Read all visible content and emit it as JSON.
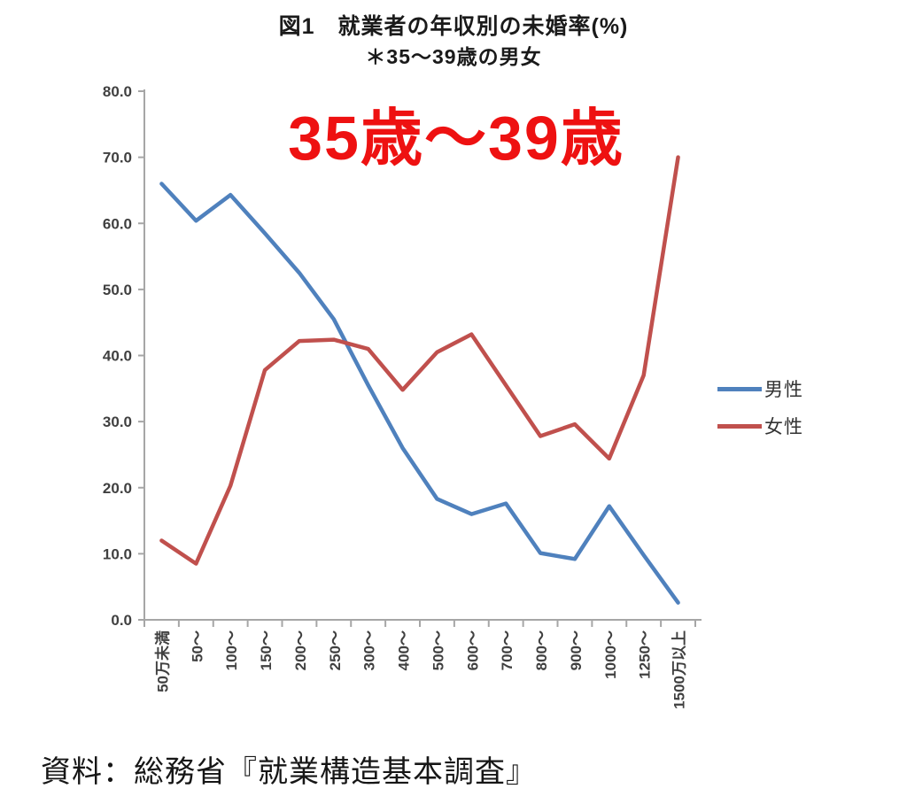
{
  "chart_data": {
    "type": "line",
    "title": "図1　就業者の年収別の未婚率(%)",
    "subtitle": "＊35〜39歳の男女",
    "annotation": "35歳〜39歳",
    "annotation_color": "#ee1111",
    "categories": [
      "50万未満",
      "50〜",
      "100〜",
      "150〜",
      "200〜",
      "250〜",
      "300〜",
      "400〜",
      "500〜",
      "600〜",
      "700〜",
      "800〜",
      "900〜",
      "1000〜",
      "1250〜",
      "1500万以上"
    ],
    "series": [
      {
        "name": "男性",
        "color": "#4f81bd",
        "values": [
          66.0,
          60.4,
          64.3,
          58.5,
          52.5,
          45.5,
          35.5,
          26.0,
          18.3,
          16.0,
          17.6,
          10.1,
          9.2,
          17.2,
          9.8,
          2.6
        ]
      },
      {
        "name": "女性",
        "color": "#c0504d",
        "values": [
          12.0,
          8.5,
          20.3,
          37.8,
          42.2,
          42.4,
          41.0,
          34.8,
          40.5,
          43.2,
          35.5,
          27.8,
          29.6,
          24.4,
          37.0,
          70.0
        ]
      }
    ],
    "xlabel": "",
    "ylabel": "",
    "ylim": [
      0,
      80
    ],
    "ytick_labels": [
      "0.0",
      "10.0",
      "20.0",
      "30.0",
      "40.0",
      "50.0",
      "60.0",
      "70.0",
      "80.0"
    ],
    "grid": false,
    "legend_position": "right",
    "axis_color": "#a6a6a6",
    "tick_label_color": "#404040"
  },
  "source_note": "資料：総務省『就業構造基本調査』"
}
